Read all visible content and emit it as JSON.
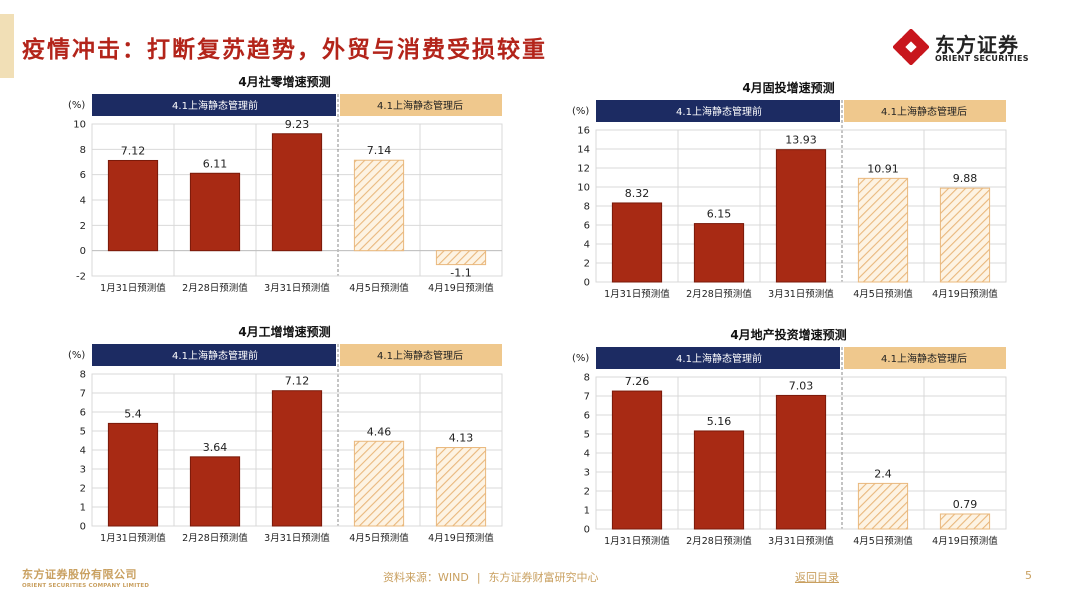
{
  "page": {
    "title": "疫情冲击：打断复苏趋势，外贸与消费受损较重",
    "logo": {
      "cn": "东方证券",
      "en": "ORIENT SECURITIES"
    },
    "footer": {
      "company_cn": "东方证券股份有限公司",
      "company_en": "ORIENT SECURITIES COMPANY LIMITED",
      "source": "资料来源：WIND",
      "separator": "|",
      "research": "东方证券财富研究中心",
      "back_link": "返回目录",
      "page_number": "5"
    },
    "colors": {
      "title": "#b3241a",
      "bar_before": "#a82a14",
      "bar_after_fill": "#fdf3e3",
      "bar_after_hatch": "#e9b87d",
      "band_before": "#1c2b62",
      "band_after": "#efc88d",
      "footer": "#c9a060"
    }
  },
  "chart_data": [
    {
      "type": "bar",
      "title": "4月社零增速预测",
      "ylabel": "(%)",
      "ylim": [
        -2,
        10
      ],
      "yticks": [
        -2,
        0,
        2,
        4,
        6,
        8,
        10
      ],
      "categories": [
        "1月31日预测值",
        "2月28日预测值",
        "3月31日预测值",
        "4月5日预测值",
        "4月19日预测值"
      ],
      "values": [
        7.12,
        6.11,
        9.23,
        7.14,
        -1.1
      ],
      "labels": [
        "7.12",
        "6.11",
        "9.23",
        "7.14",
        "-1.1"
      ],
      "period_before": "4.1上海静态管理前",
      "period_after": "4.1上海静态管理后",
      "before_count": 3,
      "grid": true
    },
    {
      "type": "bar",
      "title": "4月固投增速预测",
      "ylabel": "(%)",
      "ylim": [
        0,
        16
      ],
      "yticks": [
        0,
        2,
        4,
        6,
        8,
        10,
        12,
        14,
        16
      ],
      "categories": [
        "1月31日预测值",
        "2月28日预测值",
        "3月31日预测值",
        "4月5日预测值",
        "4月19日预测值"
      ],
      "values": [
        8.32,
        6.15,
        13.93,
        10.91,
        9.88
      ],
      "labels": [
        "8.32",
        "6.15",
        "13.93",
        "10.91",
        "9.88"
      ],
      "period_before": "4.1上海静态管理前",
      "period_after": "4.1上海静态管理后",
      "before_count": 3,
      "grid": true
    },
    {
      "type": "bar",
      "title": "4月工增增速预测",
      "ylabel": "(%)",
      "ylim": [
        0,
        8
      ],
      "yticks": [
        0,
        1,
        2,
        3,
        4,
        5,
        6,
        7,
        8
      ],
      "categories": [
        "1月31日预测值",
        "2月28日预测值",
        "3月31日预测值",
        "4月5日预测值",
        "4月19日预测值"
      ],
      "values": [
        5.4,
        3.64,
        7.12,
        4.46,
        4.13
      ],
      "labels": [
        "5.4",
        "3.64",
        "7.12",
        "4.46",
        "4.13"
      ],
      "period_before": "4.1上海静态管理前",
      "period_after": "4.1上海静态管理后",
      "before_count": 3,
      "grid": true
    },
    {
      "type": "bar",
      "title": "4月地产投资增速预测",
      "ylabel": "(%)",
      "ylim": [
        0,
        8
      ],
      "yticks": [
        0,
        1,
        2,
        3,
        4,
        5,
        6,
        7,
        8
      ],
      "categories": [
        "1月31日预测值",
        "2月28日预测值",
        "3月31日预测值",
        "4月5日预测值",
        "4月19日预测值"
      ],
      "values": [
        7.26,
        5.16,
        7.03,
        2.4,
        0.79
      ],
      "labels": [
        "7.26",
        "5.16",
        "7.03",
        "2.4",
        "0.79"
      ],
      "period_before": "4.1上海静态管理前",
      "period_after": "4.1上海静态管理后",
      "before_count": 3,
      "grid": true
    }
  ]
}
